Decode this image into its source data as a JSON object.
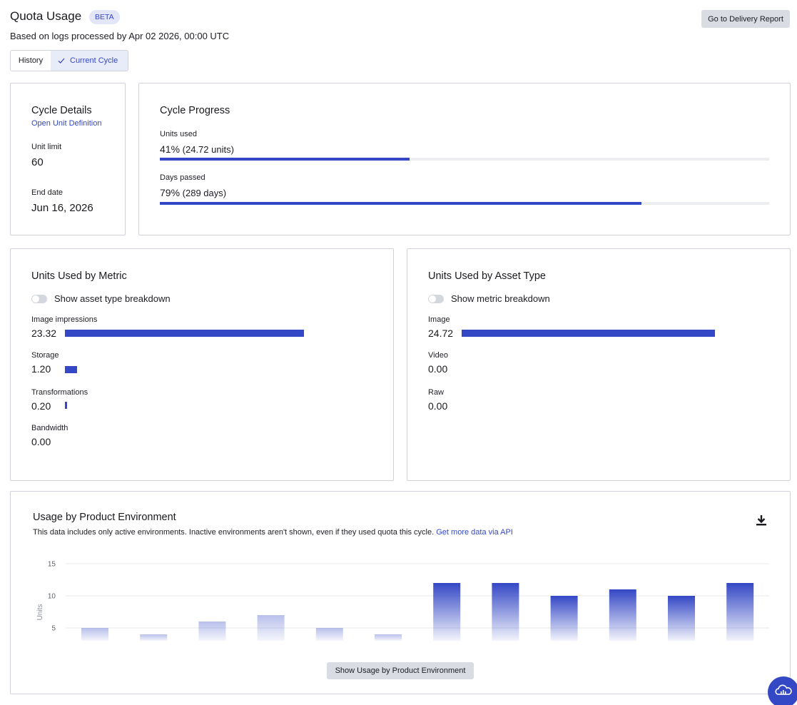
{
  "header": {
    "title": "Quota Usage",
    "badge": "BETA",
    "subtitle": "Based on logs processed by Apr 02 2026, 00:00 UTC",
    "delivery_button": "Go to Delivery Report"
  },
  "view_toggle": {
    "history_label": "History",
    "current_label": "Current Cycle",
    "selected": "Current Cycle"
  },
  "cycle_details": {
    "title": "Cycle Details",
    "link": "Open Unit Definition",
    "unit_limit_label": "Unit limit",
    "unit_limit_value": "60",
    "end_date_label": "End date",
    "end_date_value": "Jun 16, 2026"
  },
  "cycle_progress": {
    "title": "Cycle Progress",
    "units_label": "Units used",
    "units_percent": "41%",
    "units_detail": "(24.72 units)",
    "units_fraction": 0.41,
    "days_label": "Days passed",
    "days_percent": "79%",
    "days_detail": "(289 days)",
    "days_fraction": 0.79
  },
  "units_by_metric": {
    "title": "Units Used by Metric",
    "toggle_label": "Show asset type breakdown",
    "toggle_on": false,
    "items": [
      {
        "label": "Image impressions",
        "value": "23.32",
        "amount": 23.32
      },
      {
        "label": "Storage",
        "value": "1.20",
        "amount": 1.2
      },
      {
        "label": "Transformations",
        "value": "0.20",
        "amount": 0.2
      },
      {
        "label": "Bandwidth",
        "value": "0.00",
        "amount": 0
      }
    ]
  },
  "units_by_asset": {
    "title": "Units Used by Asset Type",
    "toggle_label": "Show metric breakdown",
    "toggle_on": false,
    "items": [
      {
        "label": "Image",
        "value": "24.72",
        "amount": 24.72
      },
      {
        "label": "Video",
        "value": "0.00",
        "amount": 0
      },
      {
        "label": "Raw",
        "value": "0.00",
        "amount": 0
      }
    ]
  },
  "usage_by_env": {
    "title": "Usage by Product Environment",
    "description": "This data includes only active environments. Inactive environments aren't shown, even if they used quota this cycle.",
    "link": "Get more data via API",
    "show_button": "Show Usage by Product Environment",
    "download_icon": "download-icon"
  },
  "chart_data": {
    "type": "bar",
    "ylabel": "Units",
    "xlabel": "",
    "yticks": [
      5,
      10,
      15
    ],
    "ylim": [
      3,
      15
    ],
    "grid": true,
    "series": [
      {
        "values": [
          5,
          4,
          6,
          7,
          5,
          4,
          12,
          12,
          10,
          11,
          10,
          12
        ]
      }
    ]
  },
  "colors": {
    "accent": "#3448c5",
    "badge_bg": "#e3e6f9",
    "border": "#cfd2d8",
    "button_bg": "#d9dce2"
  },
  "fab_icon": "cloud-chat-icon"
}
